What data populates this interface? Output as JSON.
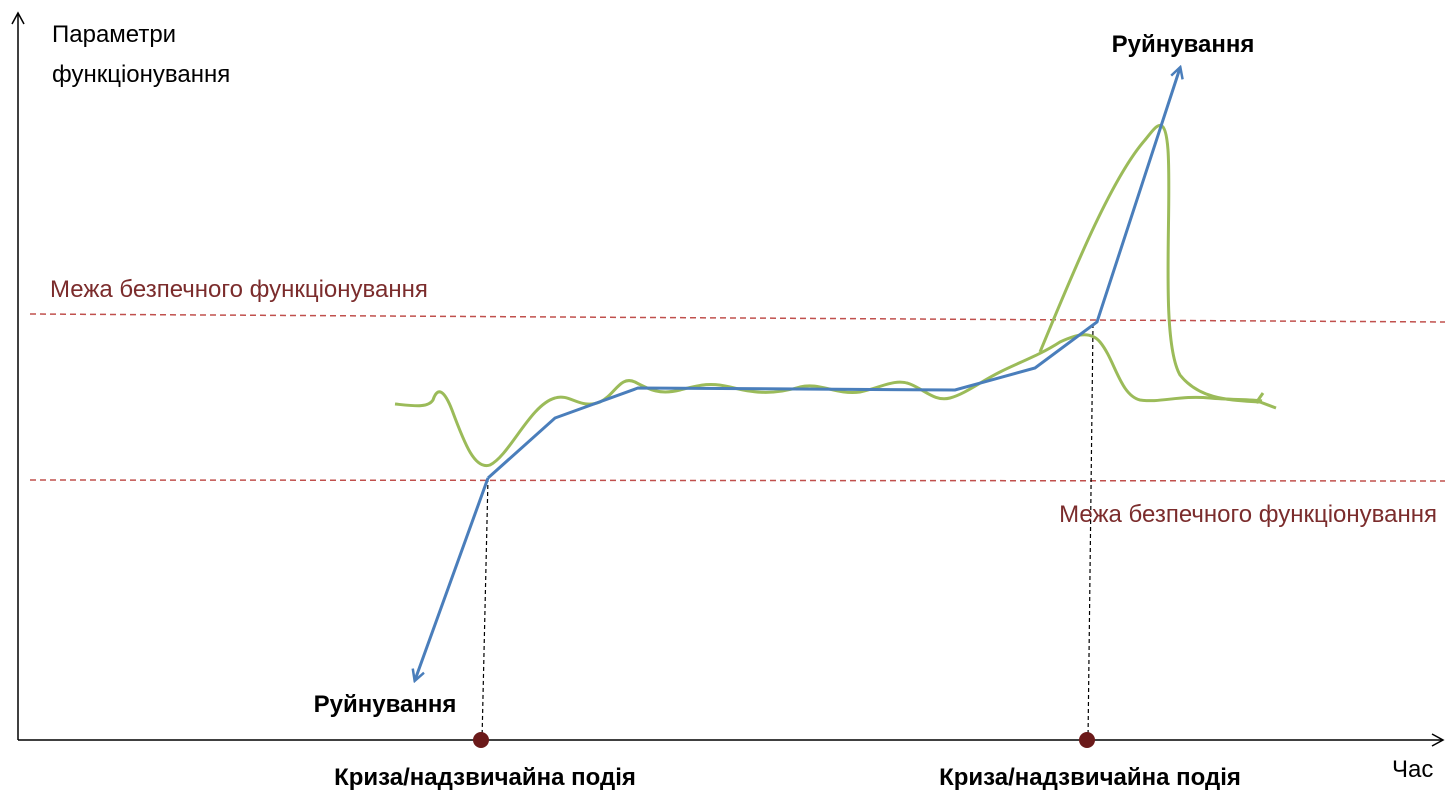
{
  "axes": {
    "y_label": [
      "Параметри",
      "функціонування"
    ],
    "x_label": "Час"
  },
  "boundaries": [
    {
      "label": "Межа безпечного функціонування"
    },
    {
      "label": "Межа безпечного функціонування"
    }
  ],
  "destruction": [
    "Руйнування",
    "Руйнування"
  ],
  "events": [
    "Криза/надзвичайна подія",
    "Криза/надзвичайна подія"
  ]
}
